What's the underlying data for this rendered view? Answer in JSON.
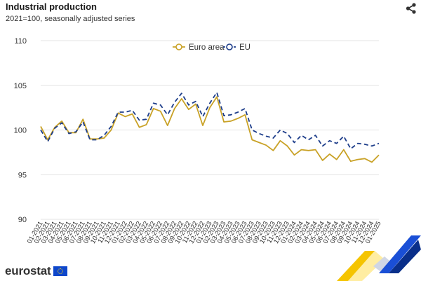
{
  "header": {
    "title": "Industrial production",
    "subtitle": "2021=100, seasonally adjusted series",
    "share_icon": "share-icon"
  },
  "footer": {
    "logo_text": "eurostat",
    "flag_icon": "eu-flag-icon"
  },
  "chart_data": {
    "type": "line",
    "title": "Industrial production",
    "subtitle": "2021=100, seasonally adjusted series",
    "xlabel": "",
    "ylabel": "",
    "ylim": [
      90,
      110
    ],
    "yticks": [
      90,
      95,
      100,
      105,
      110
    ],
    "grid": true,
    "legend_position": "top-center",
    "x": [
      "01-2021",
      "02-2021",
      "03-2021",
      "04-2021",
      "05-2021",
      "06-2021",
      "07-2021",
      "08-2021",
      "09-2021",
      "10-2021",
      "11-2021",
      "12-2021",
      "01-2022",
      "02-2022",
      "03-2022",
      "04-2022",
      "05-2022",
      "06-2022",
      "07-2022",
      "08-2022",
      "09-2022",
      "10-2022",
      "11-2022",
      "12-2022",
      "01-2023",
      "02-2023",
      "03-2023",
      "04-2023",
      "05-2023",
      "06-2023",
      "07-2023",
      "08-2023",
      "09-2023",
      "10-2023",
      "11-2023",
      "12-2023",
      "01-2024",
      "02-2024",
      "03-2024",
      "04-2024",
      "05-2024",
      "06-2024",
      "07-2024",
      "08-2024",
      "09-2024",
      "10-2024",
      "11-2024",
      "12-2024",
      "01-2025"
    ],
    "series": [
      {
        "name": "Euro area",
        "color": "#c9a227",
        "dash": "solid",
        "values": [
          100.4,
          98.9,
          100.3,
          101.0,
          99.7,
          99.7,
          101.2,
          99.0,
          99.0,
          99.1,
          100.0,
          101.9,
          101.5,
          101.8,
          100.3,
          100.6,
          102.4,
          102.1,
          100.5,
          102.4,
          103.5,
          102.3,
          102.9,
          100.5,
          102.5,
          103.7,
          100.9,
          101.0,
          101.3,
          101.7,
          98.9,
          98.6,
          98.3,
          97.7,
          98.8,
          98.2,
          97.2,
          97.8,
          97.7,
          97.8,
          96.6,
          97.3,
          96.7,
          97.8,
          96.5,
          96.7,
          96.8,
          96.4,
          97.2
        ]
      },
      {
        "name": "EU",
        "color": "#1d3d8a",
        "dash": "dashed",
        "values": [
          100.0,
          98.7,
          100.2,
          100.8,
          99.6,
          99.8,
          100.9,
          98.9,
          98.9,
          99.4,
          100.4,
          102.0,
          102.0,
          102.2,
          101.1,
          101.2,
          103.0,
          102.8,
          101.7,
          103.1,
          104.1,
          102.8,
          103.2,
          101.5,
          103.0,
          104.2,
          101.6,
          101.7,
          102.0,
          102.4,
          100.0,
          99.6,
          99.3,
          99.1,
          100.0,
          99.6,
          98.6,
          99.4,
          98.9,
          99.4,
          98.2,
          98.8,
          98.5,
          99.3,
          97.9,
          98.5,
          98.4,
          98.2,
          98.5
        ]
      }
    ]
  }
}
